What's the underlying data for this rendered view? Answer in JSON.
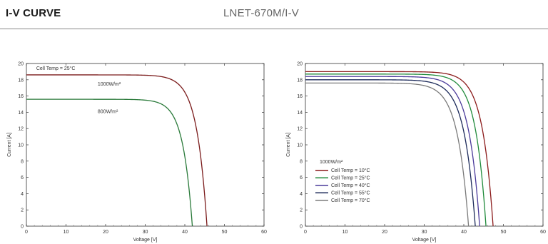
{
  "header": {
    "title": "I-V CURVE",
    "model": "LNET-670M/I-V"
  },
  "chart_data": [
    {
      "type": "line",
      "xlabel": "Voltage [V]",
      "ylabel": "Current [A]",
      "xlim": [
        0,
        60
      ],
      "ylim": [
        0,
        20
      ],
      "xticks": [
        0,
        10,
        20,
        30,
        40,
        50,
        60
      ],
      "yticks": [
        0,
        2,
        4,
        6,
        8,
        10,
        12,
        14,
        16,
        18,
        20
      ],
      "grid": false,
      "annotations": [
        {
          "text": "Cell Temp = 25°C",
          "x": 2.5,
          "y": 19.2
        },
        {
          "text": "1000W/m²",
          "x": 18,
          "y": 17.3
        },
        {
          "text": "800W/m²",
          "x": 18,
          "y": 13.9
        }
      ],
      "series": [
        {
          "name": "1000W/m²",
          "color": "#7a1a1a",
          "isc": 18.6,
          "voc": 45.6,
          "vmp": 37.8,
          "imp": 17.7
        },
        {
          "name": "800W/m²",
          "color": "#2a7a3a",
          "isc": 15.6,
          "voc": 41.9,
          "vmp": 34.5,
          "imp": 14.9
        }
      ]
    },
    {
      "type": "line",
      "xlabel": "Voltage [V]",
      "ylabel": "Current [A]",
      "xlim": [
        0,
        60
      ],
      "ylim": [
        0,
        20
      ],
      "xticks": [
        0,
        10,
        20,
        30,
        40,
        50,
        60
      ],
      "yticks": [
        0,
        2,
        4,
        6,
        8,
        10,
        12,
        14,
        16,
        18,
        20
      ],
      "grid": false,
      "legend_title": "1000W/m²",
      "legend_position": "bottom-left",
      "series": [
        {
          "name": "Cell Temp = 10°C",
          "color": "#8b1a1a",
          "isc": 19.0,
          "voc": 47.4,
          "vmp": 39.0,
          "imp": 18.1
        },
        {
          "name": "Cell Temp = 25°C",
          "color": "#1f8a3a",
          "isc": 18.7,
          "voc": 45.6,
          "vmp": 37.6,
          "imp": 17.8
        },
        {
          "name": "Cell Temp = 40°C",
          "color": "#4a3a9a",
          "isc": 18.4,
          "voc": 44.0,
          "vmp": 36.0,
          "imp": 17.4
        },
        {
          "name": "Cell Temp = 55°C",
          "color": "#1c2a5a",
          "isc": 18.0,
          "voc": 42.9,
          "vmp": 34.8,
          "imp": 17.0
        },
        {
          "name": "Cell Temp = 70°C",
          "color": "#7a7a7a",
          "isc": 17.6,
          "voc": 41.2,
          "vmp": 33.2,
          "imp": 16.6
        }
      ]
    }
  ]
}
